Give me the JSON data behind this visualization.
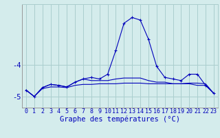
{
  "x": [
    0,
    1,
    2,
    3,
    4,
    5,
    6,
    7,
    8,
    9,
    10,
    11,
    12,
    13,
    14,
    15,
    16,
    17,
    18,
    19,
    20,
    21,
    22,
    23
  ],
  "line1": [
    -4.8,
    -5.0,
    -4.75,
    -4.7,
    -4.7,
    -4.72,
    -4.65,
    -4.62,
    -4.62,
    -4.6,
    -4.6,
    -4.6,
    -4.58,
    -4.58,
    -4.58,
    -4.6,
    -4.6,
    -4.6,
    -4.6,
    -4.6,
    -4.58,
    -4.58,
    -4.6,
    -4.9
  ],
  "line2": [
    -4.8,
    -5.0,
    -4.72,
    -4.62,
    -4.65,
    -4.7,
    -4.55,
    -4.45,
    -4.5,
    -4.5,
    -4.5,
    -4.45,
    -4.42,
    -4.42,
    -4.42,
    -4.5,
    -4.55,
    -4.55,
    -4.6,
    -4.6,
    -4.6,
    -4.65,
    -4.65,
    -4.9
  ],
  "line3": [
    -4.8,
    -5.0,
    -4.72,
    -4.62,
    -4.65,
    -4.7,
    -4.55,
    -4.45,
    -4.4,
    -4.45,
    -4.3,
    -3.55,
    -2.7,
    -2.52,
    -2.6,
    -3.2,
    -4.05,
    -4.4,
    -4.45,
    -4.5,
    -4.3,
    -4.3,
    -4.65,
    -4.9
  ],
  "bg_color": "#d4ecec",
  "grid_color": "#aacece",
  "line_color": "#0000bb",
  "xlabel": "Graphe des températures (°C)",
  "xlabel_fontsize": 7.5,
  "tick_fontsize": 6.0,
  "ylabel_fontsize": 7.5,
  "ylim": [
    -5.35,
    -2.1
  ],
  "yticks": [
    -5,
    -4
  ],
  "xlim": [
    -0.5,
    23.5
  ],
  "x_labels": [
    "0",
    "1",
    "2",
    "3",
    "4",
    "5",
    "6",
    "7",
    "8",
    "9",
    "1011",
    "1213",
    "1415",
    "1617",
    "1819",
    "2021",
    "2223"
  ]
}
